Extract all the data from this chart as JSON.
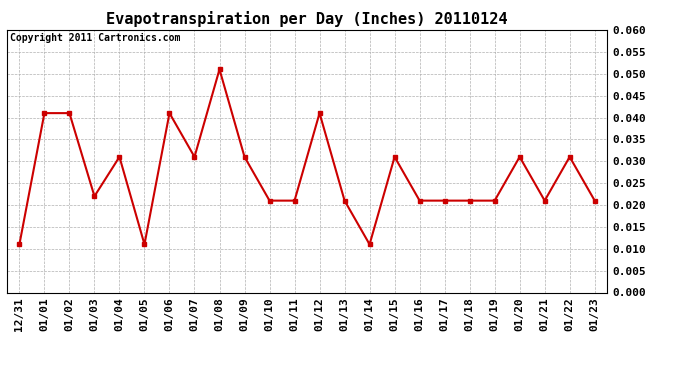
{
  "title": "Evapotranspiration per Day (Inches) 20110124",
  "copyright_text": "Copyright 2011 Cartronics.com",
  "x_labels": [
    "12/31",
    "01/01",
    "01/02",
    "01/03",
    "01/04",
    "01/05",
    "01/06",
    "01/07",
    "01/08",
    "01/09",
    "01/10",
    "01/11",
    "01/12",
    "01/13",
    "01/14",
    "01/15",
    "01/16",
    "01/17",
    "01/18",
    "01/19",
    "01/20",
    "01/21",
    "01/22",
    "01/23"
  ],
  "y_values": [
    0.011,
    0.041,
    0.041,
    0.022,
    0.031,
    0.011,
    0.041,
    0.031,
    0.051,
    0.031,
    0.021,
    0.021,
    0.041,
    0.021,
    0.011,
    0.031,
    0.021,
    0.021,
    0.021,
    0.021,
    0.031,
    0.021,
    0.031,
    0.021
  ],
  "line_color": "#cc0000",
  "marker": "s",
  "marker_size": 3,
  "line_width": 1.5,
  "ylim": [
    0.0,
    0.06
  ],
  "yticks": [
    0.0,
    0.005,
    0.01,
    0.015,
    0.02,
    0.025,
    0.03,
    0.035,
    0.04,
    0.045,
    0.05,
    0.055,
    0.06
  ],
  "background_color": "#ffffff",
  "grid_color": "#b0b0b0",
  "title_fontsize": 11,
  "tick_fontsize": 8,
  "copyright_fontsize": 7
}
